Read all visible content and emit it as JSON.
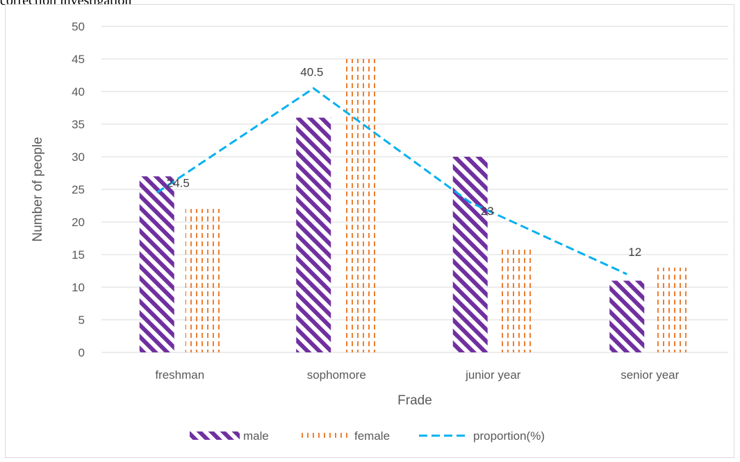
{
  "caption_fragment": "correction investigation",
  "chart_data": {
    "type": "bar",
    "categories": [
      "freshman",
      "sophomore",
      "junior year",
      "senior year"
    ],
    "series": [
      {
        "name": "male",
        "type": "bar",
        "values": [
          27,
          36,
          30,
          11
        ],
        "color": "#7030a0",
        "pattern": "diagonal-stripes"
      },
      {
        "name": "female",
        "type": "bar",
        "values": [
          22,
          45,
          16,
          13
        ],
        "color": "#ed7d31",
        "pattern": "dashed-vertical"
      },
      {
        "name": "proportion(%)",
        "type": "line",
        "values": [
          24.5,
          40.5,
          23,
          12
        ],
        "color": "#00b0f0",
        "line_style": "dashed"
      }
    ],
    "data_labels": [
      "24.5",
      "40.5",
      "23",
      "12"
    ],
    "title": "",
    "xlabel": "Frade",
    "ylabel": "Number of people",
    "ylim": [
      0,
      50
    ],
    "yticks": [
      0,
      5,
      10,
      15,
      20,
      25,
      30,
      35,
      40,
      45,
      50
    ],
    "grid": true,
    "legend_position": "bottom"
  }
}
